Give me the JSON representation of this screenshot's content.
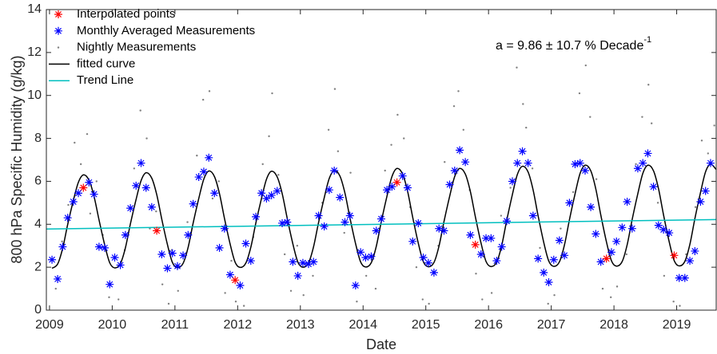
{
  "chart_data": {
    "type": "scatter",
    "xlabel": "Date",
    "ylabel": "800 hPa Specific Humidity (g/kg)",
    "annotation": {
      "text": "a = 9.86 ± 10.7 % Decade",
      "superscript": "-1"
    },
    "xlim": [
      2008.95,
      2019.63
    ],
    "xticks": [
      2009,
      2010,
      2011,
      2012,
      2013,
      2014,
      2015,
      2016,
      2017,
      2018,
      2019
    ],
    "ylim": [
      0,
      14
    ],
    "yticks": [
      0,
      2,
      4,
      6,
      8,
      10,
      12,
      14
    ],
    "grid": false,
    "legend": "upper left",
    "series": [
      {
        "name": "Interpolated points",
        "color": "#ff0000",
        "marker": "asterisk",
        "x": [
          2009.54,
          2010.71,
          2011.96,
          2014.54,
          2015.79,
          2017.88,
          2018.96
        ],
        "values": [
          5.7,
          3.7,
          1.4,
          5.95,
          3.05,
          2.4,
          2.55
        ]
      },
      {
        "name": "Monthly Averaged Measurements",
        "color": "#0000ff",
        "marker": "asterisk",
        "x": [
          2009.04,
          2009.13,
          2009.21,
          2009.29,
          2009.38,
          2009.46,
          2009.63,
          2009.71,
          2009.79,
          2009.88,
          2009.96,
          2010.04,
          2010.13,
          2010.21,
          2010.29,
          2010.38,
          2010.46,
          2010.54,
          2010.63,
          2010.79,
          2010.88,
          2010.96,
          2011.04,
          2011.13,
          2011.21,
          2011.29,
          2011.38,
          2011.46,
          2011.54,
          2011.63,
          2011.71,
          2011.79,
          2011.88,
          2012.04,
          2012.13,
          2012.21,
          2012.29,
          2012.38,
          2012.46,
          2012.54,
          2012.63,
          2012.71,
          2012.79,
          2012.88,
          2012.96,
          2013.04,
          2013.13,
          2013.21,
          2013.29,
          2013.38,
          2013.46,
          2013.54,
          2013.63,
          2013.71,
          2013.79,
          2013.88,
          2013.96,
          2014.04,
          2014.13,
          2014.21,
          2014.29,
          2014.38,
          2014.46,
          2014.63,
          2014.71,
          2014.79,
          2014.88,
          2014.96,
          2015.04,
          2015.13,
          2015.21,
          2015.29,
          2015.38,
          2015.46,
          2015.54,
          2015.63,
          2015.71,
          2015.88,
          2015.96,
          2016.04,
          2016.13,
          2016.21,
          2016.29,
          2016.38,
          2016.46,
          2016.54,
          2016.63,
          2016.71,
          2016.79,
          2016.88,
          2016.96,
          2017.04,
          2017.13,
          2017.21,
          2017.29,
          2017.38,
          2017.46,
          2017.54,
          2017.63,
          2017.71,
          2017.79,
          2017.96,
          2018.04,
          2018.13,
          2018.21,
          2018.29,
          2018.38,
          2018.46,
          2018.54,
          2018.63,
          2018.71,
          2018.79,
          2018.88,
          2019.04,
          2019.13,
          2019.21,
          2019.29,
          2019.38,
          2019.46,
          2019.54
        ],
        "values": [
          2.35,
          1.45,
          2.95,
          4.3,
          5.05,
          5.45,
          5.95,
          5.4,
          2.95,
          2.9,
          1.2,
          2.45,
          2.1,
          3.5,
          4.75,
          5.8,
          6.85,
          5.7,
          4.8,
          2.6,
          1.95,
          2.65,
          2.05,
          2.55,
          3.5,
          4.95,
          6.2,
          6.45,
          7.1,
          5.45,
          2.9,
          3.8,
          1.65,
          1.15,
          3.1,
          2.3,
          4.35,
          5.45,
          5.2,
          5.35,
          5.55,
          4.05,
          4.1,
          2.25,
          1.6,
          2.2,
          2.15,
          2.25,
          4.4,
          3.9,
          5.6,
          6.5,
          5.25,
          4.1,
          4.4,
          1.15,
          2.7,
          2.45,
          2.5,
          3.7,
          4.25,
          5.6,
          5.75,
          6.25,
          5.7,
          3.2,
          4.05,
          2.45,
          2.2,
          1.75,
          3.8,
          3.7,
          5.85,
          6.5,
          7.45,
          6.9,
          3.5,
          2.6,
          3.35,
          3.35,
          2.3,
          2.95,
          4.15,
          6.0,
          6.85,
          7.4,
          6.85,
          4.4,
          2.4,
          1.75,
          1.3,
          2.35,
          3.25,
          2.55,
          5.0,
          6.8,
          6.85,
          6.5,
          4.8,
          3.55,
          2.25,
          2.7,
          3.2,
          3.85,
          5.05,
          3.8,
          6.6,
          6.85,
          7.3,
          5.75,
          3.95,
          3.75,
          3.6,
          1.5,
          1.5,
          2.3,
          2.75,
          5.05,
          5.55,
          6.85
        ]
      },
      {
        "name": "Nightly Measurements",
        "color": "#808080",
        "marker": "dot",
        "x": [
          2009.1,
          2009.2,
          2009.3,
          2009.4,
          2009.5,
          2009.6,
          2009.65,
          2009.75,
          2009.85,
          2009.95,
          2010.1,
          2010.2,
          2010.35,
          2010.45,
          2010.55,
          2010.6,
          2010.7,
          2010.8,
          2010.9,
          2010.95,
          2011.05,
          2011.2,
          2011.35,
          2011.45,
          2011.55,
          2011.6,
          2011.7,
          2011.8,
          2011.9,
          2011.97,
          2012.1,
          2012.25,
          2012.4,
          2012.5,
          2012.55,
          2012.65,
          2012.75,
          2012.85,
          2012.95,
          2013.05,
          2013.2,
          2013.35,
          2013.45,
          2013.55,
          2013.6,
          2013.7,
          2013.8,
          2013.9,
          2014.05,
          2014.2,
          2014.35,
          2014.45,
          2014.55,
          2014.65,
          2014.75,
          2014.85,
          2014.95,
          2015.05,
          2015.2,
          2015.3,
          2015.45,
          2015.52,
          2015.6,
          2015.7,
          2015.8,
          2015.9,
          2016.05,
          2016.2,
          2016.35,
          2016.45,
          2016.55,
          2016.6,
          2016.7,
          2016.82,
          2016.95,
          2017.05,
          2017.15,
          2017.35,
          2017.45,
          2017.55,
          2017.62,
          2017.72,
          2017.82,
          2017.95,
          2018.05,
          2018.2,
          2018.35,
          2018.45,
          2018.55,
          2018.6,
          2018.7,
          2018.8,
          2018.95,
          2019.05,
          2019.15,
          2019.3,
          2019.4,
          2019.5,
          2019.6
        ],
        "values": [
          1.0,
          3.2,
          4.9,
          7.8,
          6.8,
          8.2,
          4.5,
          6.0,
          3.5,
          0.6,
          0.5,
          2.8,
          6.6,
          9.3,
          8.0,
          3.8,
          4.6,
          1.2,
          0.3,
          2.8,
          0.9,
          4.1,
          7.2,
          9.8,
          10.2,
          5.2,
          6.0,
          0.8,
          2.3,
          0.4,
          0.2,
          3.4,
          6.8,
          8.1,
          10.1,
          6.3,
          2.6,
          0.9,
          3.0,
          0.7,
          1.6,
          5.0,
          8.4,
          10.3,
          7.4,
          3.6,
          6.4,
          0.4,
          1.6,
          1.0,
          6.5,
          7.7,
          9.1,
          8.0,
          4.8,
          2.0,
          0.5,
          0.3,
          3.0,
          6.9,
          9.5,
          10.2,
          8.4,
          5.6,
          1.7,
          0.5,
          0.8,
          4.4,
          5.7,
          11.3,
          9.6,
          8.5,
          6.6,
          2.9,
          0.3,
          0.7,
          3.8,
          5.5,
          10.1,
          11.4,
          9.0,
          6.1,
          1.0,
          0.6,
          1.1,
          2.6,
          6.8,
          9.0,
          10.5,
          8.7,
          5.0,
          1.6,
          0.4,
          0.2,
          2.6,
          4.8,
          7.9,
          7.3,
          8.6
        ]
      },
      {
        "name": "fitted curve",
        "color": "#000000",
        "marker": "line",
        "smooth": true,
        "x": [
          2009.04,
          2009.13,
          2009.21,
          2009.29,
          2009.38,
          2009.46,
          2009.54,
          2009.63,
          2009.71,
          2009.79,
          2009.88,
          2009.96,
          2010.04,
          2010.13,
          2010.21,
          2010.29,
          2010.38,
          2010.46,
          2010.54,
          2010.63,
          2010.71,
          2010.79,
          2010.88,
          2010.96,
          2011.04,
          2011.13,
          2011.21,
          2011.29,
          2011.38,
          2011.46,
          2011.54,
          2011.63,
          2011.71,
          2011.79,
          2011.88,
          2011.96,
          2012.04,
          2012.13,
          2012.21,
          2012.29,
          2012.38,
          2012.46,
          2012.54,
          2012.63,
          2012.71,
          2012.79,
          2012.88,
          2012.96,
          2013.04,
          2013.13,
          2013.21,
          2013.29,
          2013.38,
          2013.46,
          2013.54,
          2013.63,
          2013.71,
          2013.79,
          2013.88,
          2013.96,
          2014.04,
          2014.13,
          2014.21,
          2014.29,
          2014.38,
          2014.46,
          2014.54,
          2014.63,
          2014.71,
          2014.79,
          2014.88,
          2014.96,
          2015.04,
          2015.13,
          2015.21,
          2015.29,
          2015.38,
          2015.46,
          2015.54,
          2015.63,
          2015.71,
          2015.79,
          2015.88,
          2015.96,
          2016.04,
          2016.13,
          2016.21,
          2016.29,
          2016.38,
          2016.46,
          2016.54,
          2016.63,
          2016.71,
          2016.79,
          2016.88,
          2016.96,
          2017.04,
          2017.13,
          2017.21,
          2017.29,
          2017.38,
          2017.46,
          2017.54,
          2017.63,
          2017.71,
          2017.79,
          2017.88,
          2017.96,
          2018.04,
          2018.13,
          2018.21,
          2018.29,
          2018.38,
          2018.46,
          2018.54,
          2018.63,
          2018.71,
          2018.79,
          2018.88,
          2018.96,
          2019.04,
          2019.13,
          2019.21,
          2019.29,
          2019.38,
          2019.46,
          2019.54,
          2019.63
        ],
        "values": [
          1.95,
          2.15,
          2.88,
          3.99,
          5.1,
          5.95,
          6.3,
          6.05,
          5.3,
          4.2,
          3.04,
          2.21,
          1.97,
          2.17,
          2.9,
          4.02,
          5.15,
          6.03,
          6.4,
          6.15,
          5.38,
          4.24,
          3.06,
          2.22,
          1.98,
          2.18,
          2.92,
          4.05,
          5.2,
          6.1,
          6.48,
          6.22,
          5.43,
          4.27,
          3.08,
          2.23,
          1.99,
          2.19,
          2.93,
          4.06,
          5.2,
          6.1,
          6.47,
          6.21,
          5.43,
          4.28,
          3.09,
          2.24,
          2.0,
          2.2,
          2.95,
          4.08,
          5.23,
          6.13,
          6.5,
          6.25,
          5.46,
          4.3,
          3.1,
          2.25,
          2.01,
          2.21,
          2.97,
          4.12,
          5.3,
          6.22,
          6.6,
          6.34,
          5.53,
          4.34,
          3.12,
          2.26,
          2.02,
          2.22,
          2.98,
          4.13,
          5.3,
          6.22,
          6.6,
          6.34,
          5.53,
          4.35,
          3.13,
          2.27,
          2.03,
          2.24,
          3.01,
          4.18,
          5.38,
          6.32,
          6.7,
          6.44,
          5.61,
          4.4,
          3.16,
          2.29,
          2.04,
          2.25,
          3.03,
          4.21,
          5.42,
          6.37,
          6.75,
          6.49,
          5.65,
          4.43,
          3.18,
          2.3,
          2.05,
          2.26,
          3.04,
          4.22,
          5.42,
          6.37,
          6.75,
          6.49,
          5.66,
          4.44,
          3.19,
          2.31,
          2.06,
          2.27,
          3.06,
          4.26,
          5.48,
          6.44,
          6.8,
          6.55
        ]
      },
      {
        "name": "Trend Line",
        "color": "#00bfbf",
        "marker": "line",
        "x": [
          2008.95,
          2019.63
        ],
        "values": [
          3.78,
          4.22
        ]
      }
    ]
  }
}
